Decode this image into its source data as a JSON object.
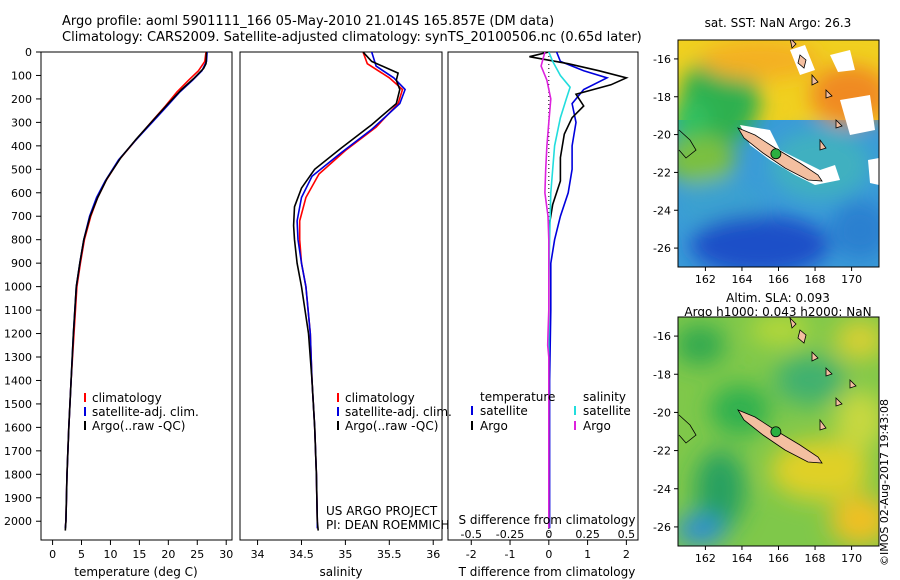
{
  "header": {
    "title_line1": "Argo profile: aoml 5901111_166 05-May-2010 21.014S 165.857E (DM data)",
    "title_line2": "Climatology: CARS2009. Satellite-adjusted climatology: synTS_20100506.nc (0.65d later)"
  },
  "credit": "©IMOS 02-Aug-2017 19:43:08",
  "colors": {
    "climatology": "#ff0000",
    "satellite": "#0000dd",
    "argo": "#000000",
    "sat_salinity": "#22dddd",
    "argo_salinity": "#dd22dd",
    "land": "#f4bfa0"
  },
  "chart_data": [
    {
      "type": "line",
      "xlabel": "temperature (deg C)",
      "ylabel": "",
      "xlim": [
        -2,
        31
      ],
      "ylim": [
        0,
        2080
      ],
      "y_inverted": true,
      "xticks": [
        0,
        5,
        10,
        15,
        20,
        25,
        30
      ],
      "yticks": [
        0,
        100,
        200,
        300,
        400,
        500,
        600,
        700,
        800,
        900,
        1000,
        1100,
        1200,
        1300,
        1400,
        1500,
        1600,
        1700,
        1800,
        1900,
        2000
      ],
      "legend": {
        "position": "lower-left",
        "entries": [
          "climatology",
          "satellite-adj. clim.",
          "Argo(..raw -QC)"
        ]
      },
      "series": [
        {
          "name": "climatology",
          "color": "#ff0000",
          "points": [
            [
              26.5,
              0
            ],
            [
              26.3,
              40
            ],
            [
              25.2,
              80
            ],
            [
              23.5,
              120
            ],
            [
              21.5,
              170
            ],
            [
              19.5,
              230
            ],
            [
              17.0,
              300
            ],
            [
              14.2,
              380
            ],
            [
              11.5,
              460
            ],
            [
              9.2,
              550
            ],
            [
              7.8,
              620
            ],
            [
              6.6,
              700
            ],
            [
              5.5,
              800
            ],
            [
              4.8,
              900
            ],
            [
              4.2,
              1000
            ],
            [
              3.7,
              1200
            ],
            [
              3.2,
              1400
            ],
            [
              2.8,
              1600
            ],
            [
              2.5,
              1800
            ],
            [
              2.3,
              2000
            ],
            [
              2.2,
              2030
            ]
          ]
        },
        {
          "name": "satellite-adj. clim.",
          "color": "#0000dd",
          "points": [
            [
              26.7,
              0
            ],
            [
              26.6,
              40
            ],
            [
              25.8,
              80
            ],
            [
              24.2,
              120
            ],
            [
              22.0,
              170
            ],
            [
              19.8,
              230
            ],
            [
              17.2,
              300
            ],
            [
              14.2,
              380
            ],
            [
              11.4,
              460
            ],
            [
              9.1,
              550
            ],
            [
              7.6,
              620
            ],
            [
              6.4,
              700
            ],
            [
              5.4,
              800
            ],
            [
              4.7,
              900
            ],
            [
              4.1,
              1000
            ],
            [
              3.6,
              1200
            ],
            [
              3.2,
              1400
            ],
            [
              2.8,
              1600
            ],
            [
              2.5,
              1800
            ],
            [
              2.3,
              2000
            ],
            [
              2.2,
              2030
            ]
          ]
        },
        {
          "name": "Argo(..raw -QC)",
          "color": "#000000",
          "points": [
            [
              26.6,
              0
            ],
            [
              26.5,
              50
            ],
            [
              26.1,
              70
            ],
            [
              24.5,
              110
            ],
            [
              22.3,
              160
            ],
            [
              20.0,
              220
            ],
            [
              17.4,
              290
            ],
            [
              14.5,
              370
            ],
            [
              11.8,
              450
            ],
            [
              9.4,
              540
            ],
            [
              7.8,
              620
            ],
            [
              6.5,
              700
            ],
            [
              5.4,
              800
            ],
            [
              4.7,
              900
            ],
            [
              4.1,
              1000
            ],
            [
              3.6,
              1200
            ],
            [
              3.2,
              1400
            ],
            [
              2.8,
              1600
            ],
            [
              2.5,
              1800
            ],
            [
              2.3,
              2000
            ],
            [
              2.2,
              2040
            ]
          ]
        }
      ]
    },
    {
      "type": "line",
      "xlabel": "salinity",
      "ylabel": "",
      "xlim": [
        33.8,
        36.1
      ],
      "ylim": [
        0,
        2080
      ],
      "y_inverted": true,
      "xticks": [
        34,
        34.5,
        35,
        35.5,
        36
      ],
      "legend": {
        "position": "lower-left",
        "entries": [
          "climatology",
          "satellite-adj. clim.",
          "Argo(..raw -QC)"
        ]
      },
      "annotations": [
        "US ARGO PROJECT",
        "PI: DEAN ROEMMICH"
      ],
      "series": [
        {
          "name": "climatology",
          "color": "#ff0000",
          "points": [
            [
              35.2,
              0
            ],
            [
              35.25,
              50
            ],
            [
              35.5,
              110
            ],
            [
              35.65,
              160
            ],
            [
              35.6,
              220
            ],
            [
              35.35,
              320
            ],
            [
              35.0,
              420
            ],
            [
              34.7,
              520
            ],
            [
              34.55,
              620
            ],
            [
              34.48,
              720
            ],
            [
              34.48,
              800
            ],
            [
              34.5,
              900
            ],
            [
              34.55,
              1000
            ],
            [
              34.6,
              1200
            ],
            [
              34.62,
              1400
            ],
            [
              34.65,
              1600
            ],
            [
              34.67,
              1800
            ],
            [
              34.68,
              2000
            ],
            [
              34.68,
              2030
            ]
          ]
        },
        {
          "name": "satellite-adj. clim.",
          "color": "#0000dd",
          "points": [
            [
              35.3,
              0
            ],
            [
              35.35,
              60
            ],
            [
              35.55,
              110
            ],
            [
              35.68,
              160
            ],
            [
              35.62,
              220
            ],
            [
              35.3,
              330
            ],
            [
              34.95,
              430
            ],
            [
              34.62,
              530
            ],
            [
              34.5,
              620
            ],
            [
              34.45,
              720
            ],
            [
              34.46,
              800
            ],
            [
              34.5,
              900
            ],
            [
              34.55,
              1000
            ],
            [
              34.6,
              1200
            ],
            [
              34.62,
              1400
            ],
            [
              34.65,
              1600
            ],
            [
              34.67,
              1800
            ],
            [
              34.68,
              2000
            ],
            [
              34.68,
              2030
            ]
          ]
        },
        {
          "name": "Argo(..raw -QC)",
          "color": "#000000",
          "points": [
            [
              35.2,
              0
            ],
            [
              35.3,
              40
            ],
            [
              35.6,
              90
            ],
            [
              35.58,
              120
            ],
            [
              35.62,
              160
            ],
            [
              35.58,
              220
            ],
            [
              35.3,
              310
            ],
            [
              34.95,
              410
            ],
            [
              34.65,
              500
            ],
            [
              34.5,
              580
            ],
            [
              34.42,
              660
            ],
            [
              34.41,
              740
            ],
            [
              34.42,
              800
            ],
            [
              34.45,
              900
            ],
            [
              34.5,
              1000
            ],
            [
              34.58,
              1200
            ],
            [
              34.62,
              1400
            ],
            [
              34.65,
              1600
            ],
            [
              34.67,
              1800
            ],
            [
              34.68,
              2000
            ],
            [
              34.69,
              2040
            ]
          ]
        }
      ]
    },
    {
      "type": "line",
      "xlabel": "T difference from climatology",
      "xlabel_top": "S difference from climatology",
      "xlim": [
        -2.6,
        2.3
      ],
      "ylim": [
        0,
        2080
      ],
      "y_inverted": true,
      "xticks": [
        -2,
        -1,
        0,
        1,
        2
      ],
      "xticks_top": [
        -0.5,
        -0.25,
        0,
        0.25,
        0.5
      ],
      "xticklabels_top": [
        "-0.5",
        "-0.25",
        "0",
        "0.25",
        "0.5"
      ],
      "legend": {
        "position": "top",
        "titles": [
          "temperature",
          "salinity"
        ],
        "entries": [
          "satellite",
          "Argo",
          "satellite",
          "Argo"
        ]
      },
      "series": [
        {
          "name": "satellite",
          "color": "#0000dd",
          "points": [
            [
              0.2,
              0
            ],
            [
              0.3,
              40
            ],
            [
              0.9,
              80
            ],
            [
              1.5,
              110
            ],
            [
              0.9,
              160
            ],
            [
              0.6,
              220
            ],
            [
              0.7,
              300
            ],
            [
              0.6,
              400
            ],
            [
              0.6,
              500
            ],
            [
              0.5,
              600
            ],
            [
              0.3,
              700
            ],
            [
              0.15,
              800
            ],
            [
              0.05,
              900
            ],
            [
              0.05,
              1100
            ],
            [
              0.02,
              1400
            ],
            [
              0.02,
              2030
            ]
          ]
        },
        {
          "name": "Argo",
          "color": "#000000",
          "points": [
            [
              0.0,
              0
            ],
            [
              -0.5,
              20
            ],
            [
              0.5,
              50
            ],
            [
              1.3,
              80
            ],
            [
              2.0,
              110
            ],
            [
              1.6,
              140
            ],
            [
              0.7,
              180
            ],
            [
              0.9,
              230
            ],
            [
              0.6,
              280
            ],
            [
              0.4,
              350
            ],
            [
              0.3,
              450
            ],
            [
              0.3,
              550
            ],
            [
              0.1,
              650
            ],
            [
              0.0,
              750
            ],
            [
              0.0,
              900
            ],
            [
              0.0,
              1200
            ],
            [
              0.0,
              1600
            ],
            [
              0.0,
              2030
            ]
          ]
        },
        {
          "name": "satellite",
          "color": "#22dddd",
          "points": [
            [
              0.0,
              0
            ],
            [
              0.1,
              40
            ],
            [
              0.3,
              100
            ],
            [
              0.55,
              150
            ],
            [
              0.45,
              200
            ],
            [
              0.3,
              280
            ],
            [
              0.15,
              400
            ],
            [
              0.1,
              500
            ],
            [
              0.05,
              600
            ],
            [
              0.02,
              800
            ],
            [
              0.0,
              1000
            ],
            [
              0.0,
              2030
            ]
          ]
        },
        {
          "name": "Argo",
          "color": "#dd22dd",
          "points": [
            [
              -0.1,
              0
            ],
            [
              -0.2,
              60
            ],
            [
              -0.05,
              120
            ],
            [
              0.05,
              200
            ],
            [
              0.0,
              300
            ],
            [
              -0.05,
              400
            ],
            [
              -0.08,
              500
            ],
            [
              -0.1,
              600
            ],
            [
              -0.02,
              700
            ],
            [
              0.0,
              800
            ],
            [
              0.0,
              1100
            ],
            [
              -0.02,
              1200
            ],
            [
              -0.03,
              1250
            ],
            [
              0.0,
              1300
            ],
            [
              0.0,
              2030
            ]
          ]
        }
      ]
    },
    {
      "type": "heatmap",
      "title": "sat. SST: NaN Argo: 26.3",
      "xlim": [
        160.5,
        171.5
      ],
      "ylim": [
        -27,
        -15
      ],
      "xticks": [
        162,
        164,
        166,
        168,
        170
      ],
      "yticks": [
        -16,
        -18,
        -20,
        -22,
        -24,
        -26
      ],
      "marker": {
        "lon": 165.857,
        "lat": -21.014
      }
    },
    {
      "type": "heatmap",
      "title_lines": [
        "Altim. SLA: 0.093",
        "Argo h1000: 0.043 h2000: NaN"
      ],
      "xlim": [
        160.5,
        171.5
      ],
      "ylim": [
        -27,
        -15
      ],
      "xticks": [
        162,
        164,
        166,
        168,
        170
      ],
      "yticks": [
        -16,
        -18,
        -20,
        -22,
        -24,
        -26
      ],
      "marker": {
        "lon": 165.857,
        "lat": -21.014
      }
    }
  ]
}
